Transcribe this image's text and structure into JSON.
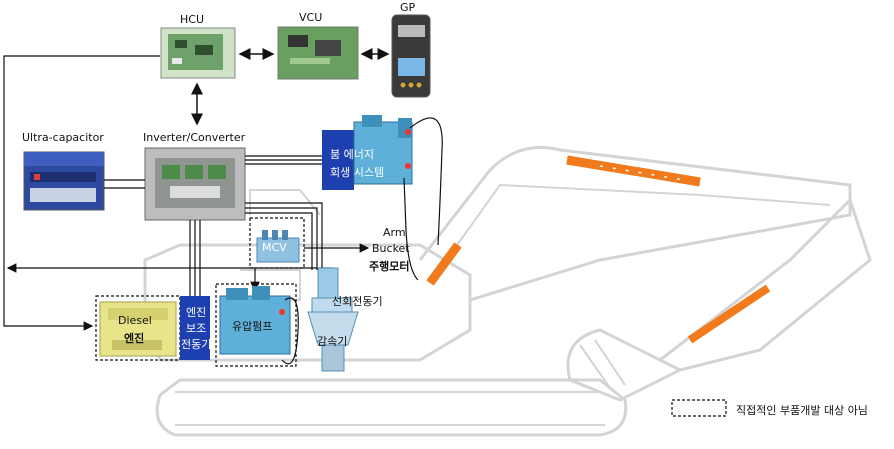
{
  "labels": {
    "hcu": "HCU",
    "vcu": "VCU",
    "gp": "GP",
    "ultracap": "Ultra-capacitor",
    "inverter": "Inverter/Converter",
    "energy_1": "붐 에너지",
    "energy_2": "회생 시스템",
    "mcv": "MCV",
    "arm": "Arm",
    "bucket": "Bucket",
    "travel_motor": "주행모터",
    "swing_motor": "선회전동기",
    "reducer": "감속기",
    "diesel": "Diesel",
    "engine": "엔진",
    "assist_1": "엔진",
    "assist_2": "보조",
    "assist_3": "전동기",
    "hyd_pump": "유압펌프",
    "legend": "직접적인 부품개발 대상 아님"
  },
  "colors": {
    "blue_box": "#1e3fb0",
    "cylinder": "#f07a1c",
    "excavator_outline": "#d4d4d4",
    "engine_yellow": "#e8e48a",
    "pump_blue": "#5fb0d8"
  }
}
